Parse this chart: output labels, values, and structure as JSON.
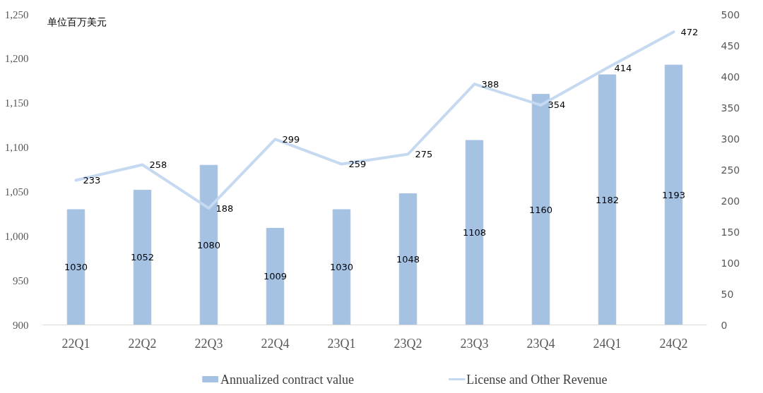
{
  "chart_data": {
    "type": "bar",
    "ylabel": "单位百万美元",
    "categories": [
      "22Q1",
      "22Q2",
      "22Q3",
      "22Q4",
      "23Q1",
      "23Q2",
      "23Q3",
      "23Q4",
      "24Q1",
      "24Q2"
    ],
    "series": [
      {
        "name": "Annualized contract value",
        "color": "#a5c2e3",
        "values": [
          1030,
          1052,
          1080,
          1009,
          1030,
          1048,
          1108,
          1160,
          1182,
          1193
        ]
      },
      {
        "name": "License and Other Revenue",
        "type": "line",
        "axis": "y2",
        "color": "#c5d9f0",
        "values": [
          233,
          258,
          188,
          299,
          259,
          275,
          388,
          354,
          414,
          472
        ]
      }
    ],
    "ylim": [
      900,
      1250
    ],
    "yticks": [
      900,
      950,
      {
        "value": 1000,
        "label": "1,000"
      },
      {
        "value": 1050,
        "label": "1,050"
      },
      {
        "value": 1100,
        "label": "1,100"
      },
      {
        "value": 1150,
        "label": "1,150"
      },
      {
        "value": 1200,
        "label": "1,200"
      },
      {
        "value": 1250,
        "label": "1,250"
      }
    ],
    "y2lim": [
      0,
      500
    ],
    "y2ticks": [
      0,
      50,
      100,
      150,
      200,
      250,
      300,
      350,
      400,
      450,
      500
    ],
    "data_labels": true,
    "legend": "bottom",
    "grid": false
  }
}
